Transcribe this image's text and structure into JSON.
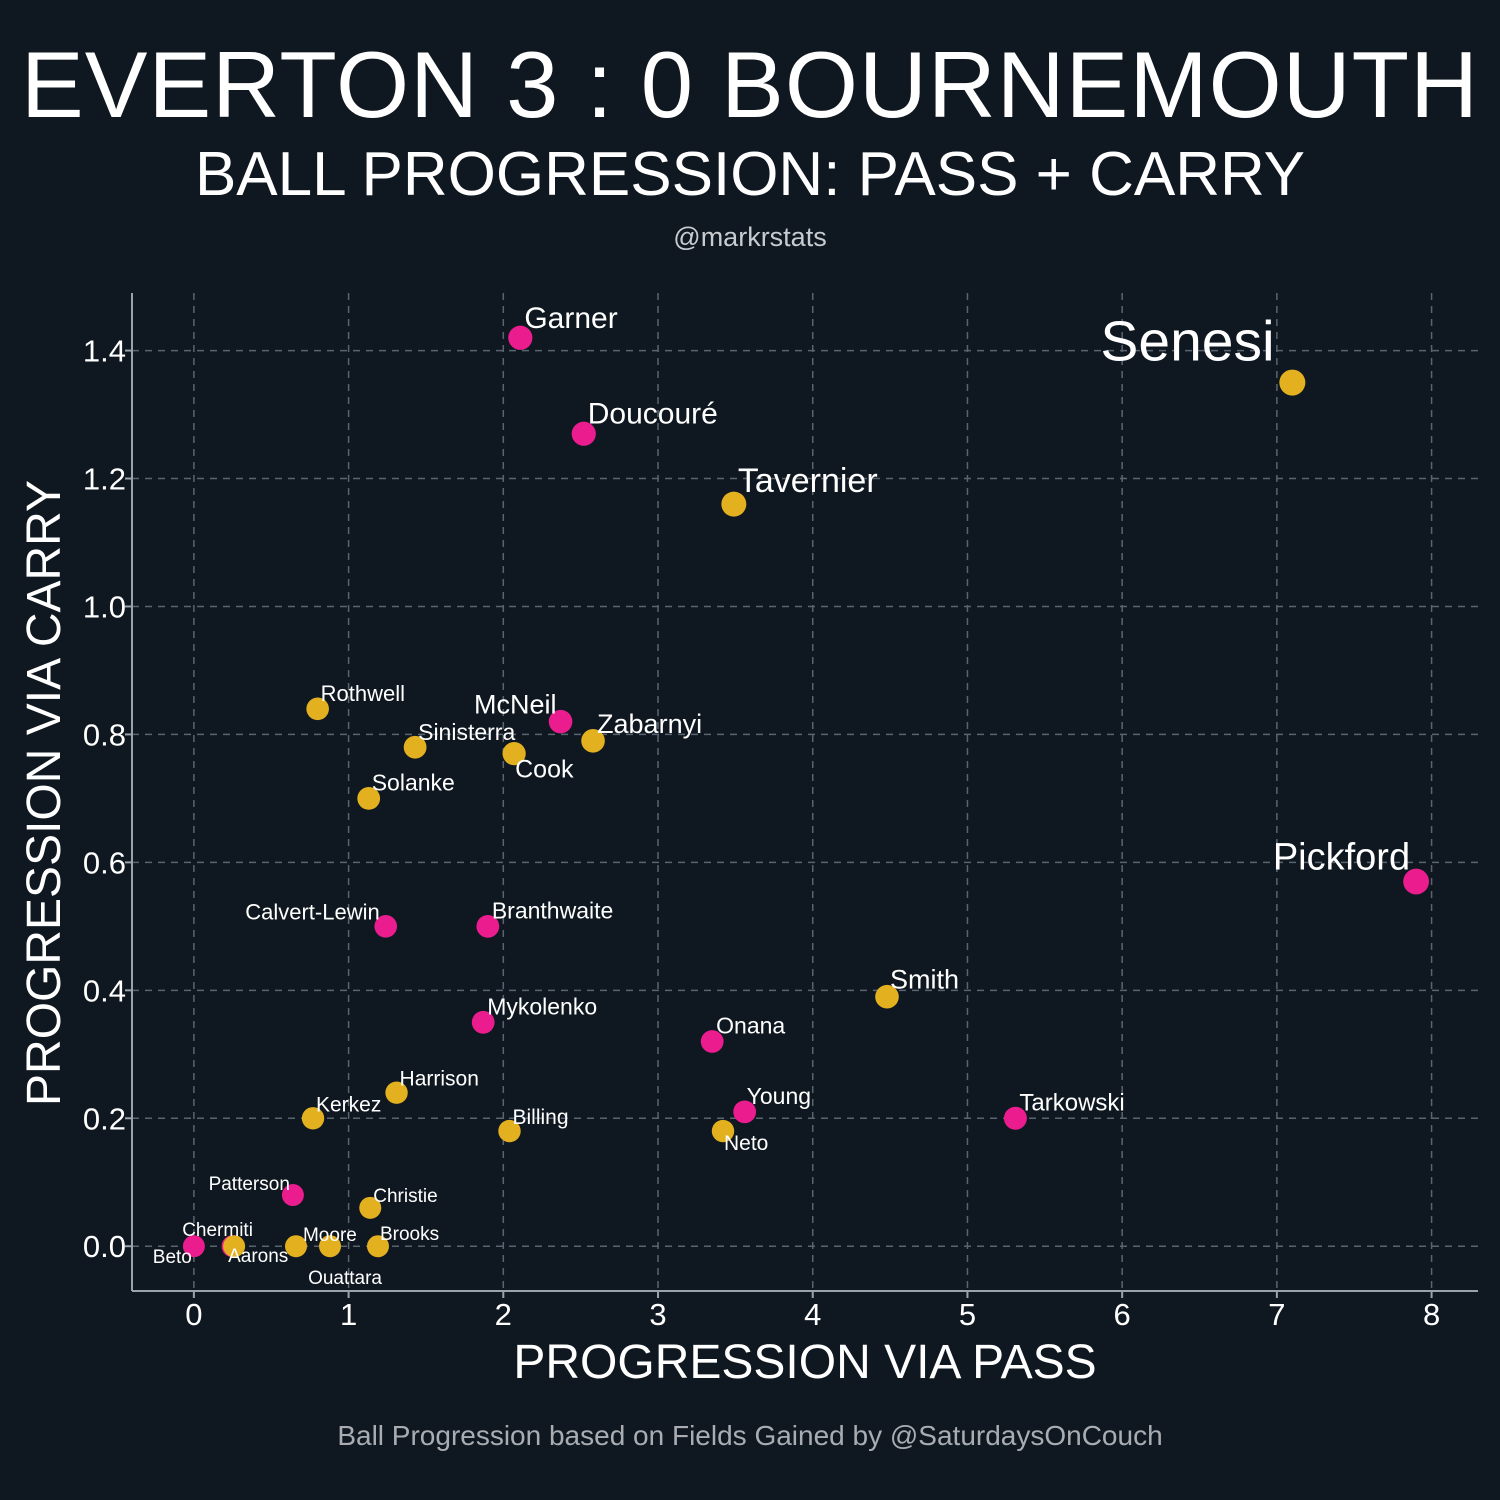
{
  "title": "EVERTON 3 : 0 BOURNEMOUTH",
  "subtitle": "BALL PROGRESSION: PASS + CARRY",
  "handle": "@markrstats",
  "caption": "Ball Progression based on Fields Gained by @SaturdaysOnCouch",
  "colors": {
    "background": "#0f1820",
    "everton": "#ea1c8e",
    "bournemouth": "#e3b020",
    "grid": "#5a6470",
    "axis": "#9aa3ab"
  },
  "chart_data": {
    "type": "scatter",
    "xlabel": "PROGRESSION VIA PASS",
    "ylabel": "PROGRESSION VIA CARRY",
    "xlim": [
      -0.4,
      8.3
    ],
    "ylim": [
      -0.07,
      1.49
    ],
    "xticks": [
      0,
      1,
      2,
      3,
      4,
      5,
      6,
      7,
      8
    ],
    "xtick_labels": [
      "0",
      "1",
      "2",
      "3",
      "4",
      "5",
      "6",
      "7",
      "8"
    ],
    "yticks": [
      0.0,
      0.2,
      0.4,
      0.6,
      0.8,
      1.0,
      1.2,
      1.4
    ],
    "ytick_labels": [
      "0.0",
      "0.2",
      "0.4",
      "0.6",
      "0.8",
      "1.0",
      "1.2",
      "1.4"
    ],
    "grid": true,
    "points": [
      {
        "name": "Garner",
        "x": 2.11,
        "y": 1.42,
        "team": "everton",
        "size": 30,
        "dx": 4,
        "dy": -10,
        "anchor": "start"
      },
      {
        "name": "Doucouré",
        "x": 2.52,
        "y": 1.27,
        "team": "everton",
        "size": 30,
        "dx": 4,
        "dy": -10,
        "anchor": "start"
      },
      {
        "name": "Senesi",
        "x": 7.1,
        "y": 1.35,
        "team": "bournemouth",
        "size": 57,
        "dx": -192,
        "dy": -22,
        "anchor": "start"
      },
      {
        "name": "Tavernier",
        "x": 3.49,
        "y": 1.16,
        "team": "bournemouth",
        "size": 34,
        "dx": 4,
        "dy": -12,
        "anchor": "start"
      },
      {
        "name": "Rothwell",
        "x": 0.8,
        "y": 0.84,
        "team": "bournemouth",
        "size": 22,
        "dx": 3,
        "dy": -8,
        "anchor": "start"
      },
      {
        "name": "McNeil",
        "x": 2.37,
        "y": 0.82,
        "team": "everton",
        "size": 27,
        "dx": -4,
        "dy": -8,
        "anchor": "end"
      },
      {
        "name": "Zabarnyi",
        "x": 2.58,
        "y": 0.79,
        "team": "bournemouth",
        "size": 27,
        "dx": 4,
        "dy": -8,
        "anchor": "start"
      },
      {
        "name": "Sinisterra",
        "x": 1.43,
        "y": 0.78,
        "team": "bournemouth",
        "size": 23,
        "dx": 3,
        "dy": -7,
        "anchor": "start"
      },
      {
        "name": "Cook",
        "x": 2.07,
        "y": 0.77,
        "team": "bournemouth",
        "size": 25,
        "dx": 1,
        "dy": 24,
        "anchor": "start"
      },
      {
        "name": "Solanke",
        "x": 1.13,
        "y": 0.7,
        "team": "bournemouth",
        "size": 23,
        "dx": 3,
        "dy": -8,
        "anchor": "start"
      },
      {
        "name": "Pickford",
        "x": 7.9,
        "y": 0.57,
        "team": "everton",
        "size": 38,
        "dx": -6,
        "dy": -12,
        "anchor": "end"
      },
      {
        "name": "Calvert-Lewin",
        "x": 1.24,
        "y": 0.5,
        "team": "everton",
        "size": 22,
        "dx": -6,
        "dy": -7,
        "anchor": "end"
      },
      {
        "name": "Branthwaite",
        "x": 1.9,
        "y": 0.5,
        "team": "everton",
        "size": 23,
        "dx": 4,
        "dy": -8,
        "anchor": "start"
      },
      {
        "name": "Smith",
        "x": 4.48,
        "y": 0.39,
        "team": "bournemouth",
        "size": 27,
        "dx": 3,
        "dy": -8,
        "anchor": "start"
      },
      {
        "name": "Mykolenko",
        "x": 1.87,
        "y": 0.35,
        "team": "everton",
        "size": 23,
        "dx": 4,
        "dy": -8,
        "anchor": "start"
      },
      {
        "name": "Onana",
        "x": 3.35,
        "y": 0.32,
        "team": "everton",
        "size": 23,
        "dx": 4,
        "dy": -8,
        "anchor": "start"
      },
      {
        "name": "Harrison",
        "x": 1.31,
        "y": 0.24,
        "team": "bournemouth",
        "size": 21,
        "dx": 3,
        "dy": -7,
        "anchor": "start"
      },
      {
        "name": "Kerkez",
        "x": 0.77,
        "y": 0.2,
        "team": "bournemouth",
        "size": 21,
        "dx": 3,
        "dy": -7,
        "anchor": "start"
      },
      {
        "name": "Young",
        "x": 3.56,
        "y": 0.21,
        "team": "everton",
        "size": 23,
        "dx": 2,
        "dy": -8,
        "anchor": "start"
      },
      {
        "name": "Tarkowski",
        "x": 5.31,
        "y": 0.2,
        "team": "everton",
        "size": 24,
        "dx": 4,
        "dy": -8,
        "anchor": "start"
      },
      {
        "name": "Billing",
        "x": 2.04,
        "y": 0.18,
        "team": "bournemouth",
        "size": 21,
        "dx": 3,
        "dy": -7,
        "anchor": "start"
      },
      {
        "name": "Neto",
        "x": 3.42,
        "y": 0.18,
        "team": "bournemouth",
        "size": 21,
        "dx": 1,
        "dy": 19,
        "anchor": "start"
      },
      {
        "name": "Patterson",
        "x": 0.64,
        "y": 0.08,
        "team": "everton",
        "size": 19,
        "dx": -3,
        "dy": -5,
        "anchor": "end"
      },
      {
        "name": "Christie",
        "x": 1.14,
        "y": 0.06,
        "team": "bournemouth",
        "size": 19,
        "dx": 3,
        "dy": -6,
        "anchor": "start"
      },
      {
        "name": "Chermiti",
        "x": 0.25,
        "y": 0.0,
        "team": "everton",
        "size": 19,
        "dx": -15,
        "dy": -10,
        "anchor": "middle"
      },
      {
        "name": "Beto",
        "x": 0.0,
        "y": 0.0,
        "team": "everton",
        "size": 19,
        "dx": -2,
        "dy": 17,
        "anchor": "end"
      },
      {
        "name": "Aarons",
        "x": 0.26,
        "y": 0.0,
        "team": "bournemouth",
        "size": 19,
        "dx": -6,
        "dy": 16,
        "anchor": "start"
      },
      {
        "name": "Moore",
        "x": 0.66,
        "y": 0.0,
        "team": "bournemouth",
        "size": 19,
        "dx": 7,
        "dy": -5,
        "anchor": "start"
      },
      {
        "name": "Ouattara",
        "x": 0.88,
        "y": 0.0,
        "team": "bournemouth",
        "size": 19,
        "dx": 15,
        "dy": 38,
        "anchor": "middle"
      },
      {
        "name": "Brooks",
        "x": 1.19,
        "y": 0.0,
        "team": "bournemouth",
        "size": 19,
        "dx": 2,
        "dy": -6,
        "anchor": "start"
      }
    ]
  }
}
